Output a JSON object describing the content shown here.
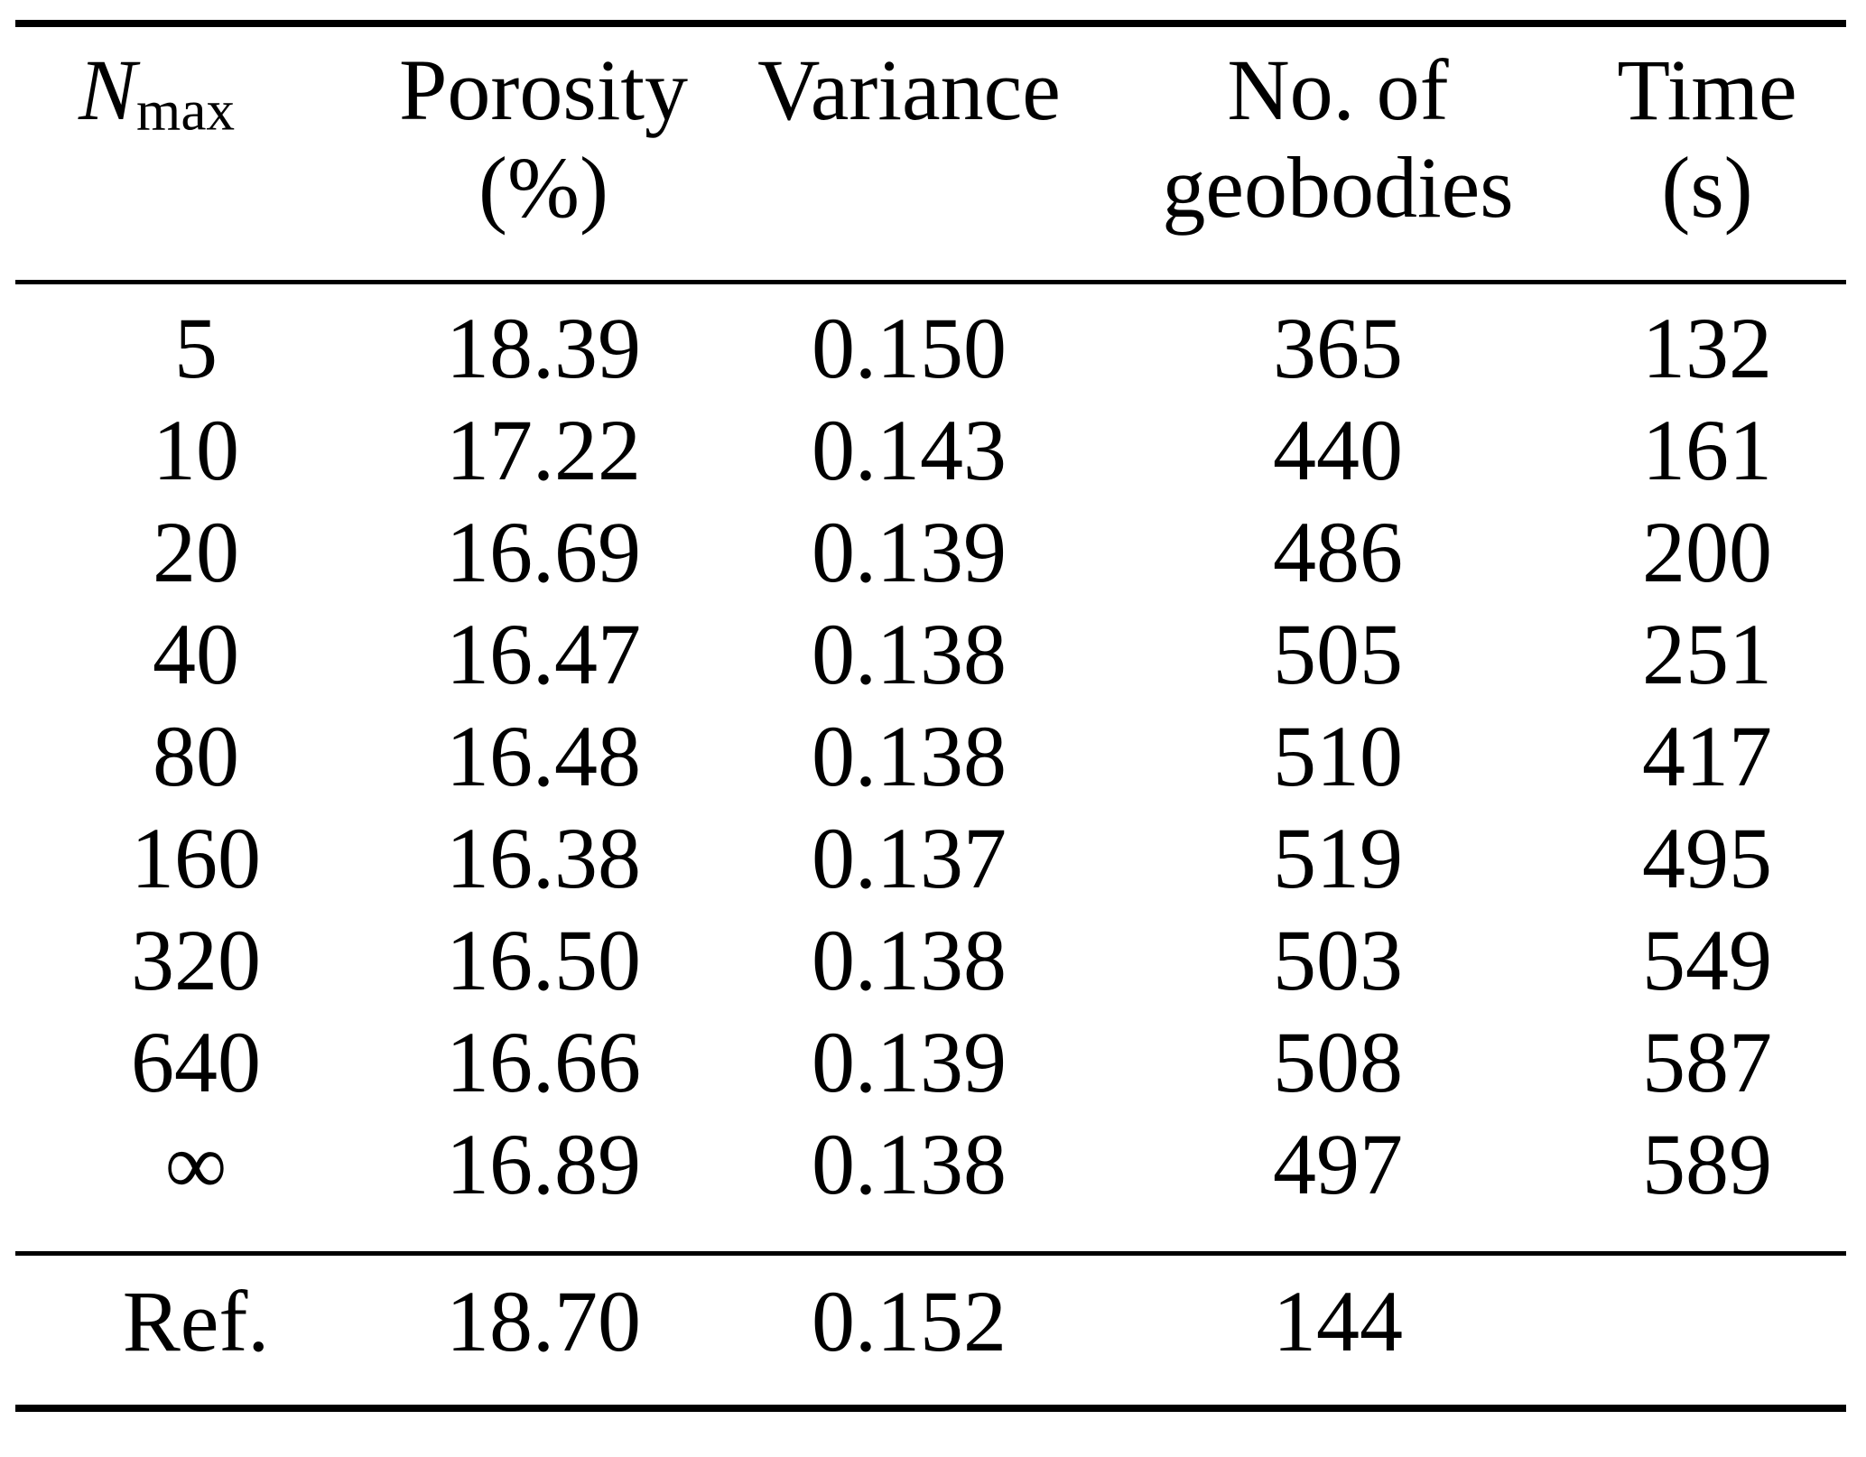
{
  "table": {
    "header": {
      "nmax_symbol": "N",
      "nmax_subscript": "max",
      "porosity_line1": "Porosity",
      "porosity_line2": "(%)",
      "variance": "Variance",
      "geobodies_line1": "No. of",
      "geobodies_line2": "geobodies",
      "time_line1": "Time",
      "time_line2": "(s)"
    },
    "rows": [
      [
        "5",
        "18.39",
        "0.150",
        "365",
        "132"
      ],
      [
        "10",
        "17.22",
        "0.143",
        "440",
        "161"
      ],
      [
        "20",
        "16.69",
        "0.139",
        "486",
        "200"
      ],
      [
        "40",
        "16.47",
        "0.138",
        "505",
        "251"
      ],
      [
        "80",
        "16.48",
        "0.138",
        "510",
        "417"
      ],
      [
        "160",
        "16.38",
        "0.137",
        "519",
        "495"
      ],
      [
        "320",
        "16.50",
        "0.138",
        "503",
        "549"
      ],
      [
        "640",
        "16.66",
        "0.139",
        "508",
        "587"
      ],
      [
        "∞",
        "16.89",
        "0.138",
        "497",
        "589"
      ]
    ],
    "footer_row": [
      "Ref.",
      "18.70",
      "0.152",
      "144",
      ""
    ]
  },
  "colors": {
    "text": "#000000",
    "background": "#ffffff",
    "rule": "#000000"
  }
}
